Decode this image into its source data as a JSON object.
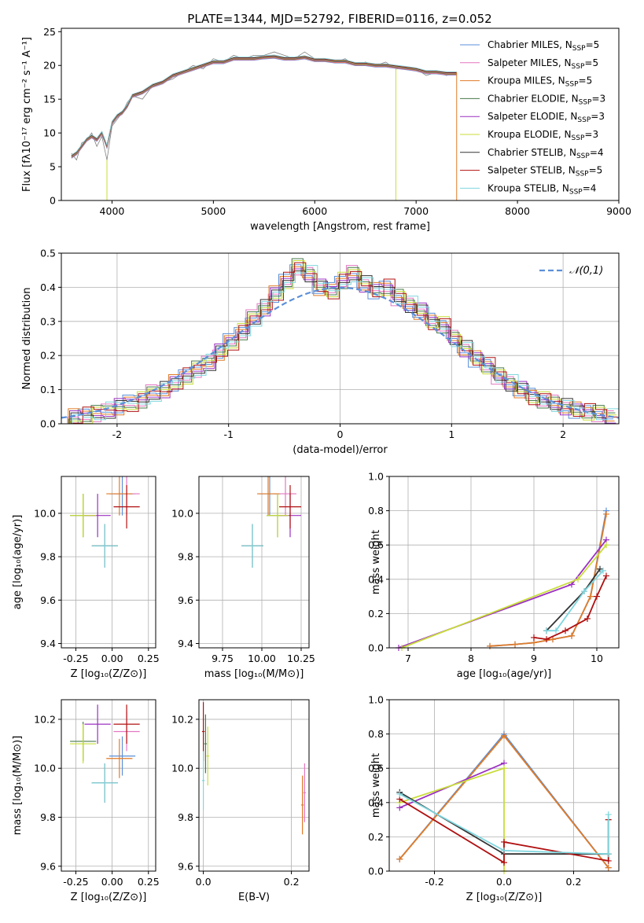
{
  "title": "PLATE=1344, MJD=52792, FIBERID=0116, z=0.052",
  "legend_spec": [
    {
      "name": "Chabrier MILES, N",
      "sub": "SSP",
      "eq": "=5",
      "color": "#5b8fd9"
    },
    {
      "name": "Salpeter MILES, N",
      "sub": "SSP",
      "eq": "=5",
      "color": "#e377c2"
    },
    {
      "name": "Kroupa MILES, N",
      "sub": "SSP",
      "eq": "=5",
      "color": "#e07b28"
    },
    {
      "name": "Chabrier ELODIE, N",
      "sub": "SSP",
      "eq": "=3",
      "color": "#4a7a4a"
    },
    {
      "name": "Salpeter ELODIE, N",
      "sub": "SSP",
      "eq": "=3",
      "color": "#9b30c0"
    },
    {
      "name": "Kroupa ELODIE, N",
      "sub": "SSP",
      "eq": "=3",
      "color": "#c8dd3a"
    },
    {
      "name": "Chabrier STELIB, N",
      "sub": "SSP",
      "eq": "=4",
      "color": "#333333"
    },
    {
      "name": "Salpeter STELIB, N",
      "sub": "SSP",
      "eq": "=5",
      "color": "#b01010"
    },
    {
      "name": "Kroupa STELIB, N",
      "sub": "SSP",
      "eq": "=4",
      "color": "#7fd6de"
    }
  ],
  "chart_data": [
    {
      "type": "line",
      "title": "PLATE=1344, MJD=52792, FIBERID=0116, z=0.052",
      "xlabel": "wavelength [Angstrom, rest frame]",
      "ylabel": "Flux [fλ10⁻¹⁷ erg cm⁻² s⁻¹ A⁻¹]",
      "xlim": [
        3500,
        9000
      ],
      "ylim": [
        0,
        25.5
      ],
      "xticks": [
        4000,
        5000,
        6000,
        7000,
        8000,
        9000
      ],
      "yticks": [
        0,
        5,
        10,
        15,
        20,
        25
      ],
      "data_spectrum": {
        "x": [
          3600,
          3650,
          3700,
          3750,
          3800,
          3850,
          3900,
          3950,
          4000,
          4050,
          4100,
          4150,
          4200,
          4300,
          4400,
          4500,
          4600,
          4700,
          4800,
          4900,
          5000,
          5100,
          5200,
          5300,
          5400,
          5500,
          5600,
          5700,
          5800,
          5900,
          6000,
          6100,
          6200,
          6300,
          6400,
          6500,
          6600,
          6700,
          6800,
          6900,
          7000,
          7100,
          7200,
          7300,
          7400
        ],
        "y": [
          7.0,
          6.0,
          8.5,
          9.0,
          10.0,
          8.0,
          9.5,
          6.0,
          11.0,
          12.0,
          13.0,
          14.5,
          15.5,
          15.0,
          17.0,
          17.5,
          18.0,
          19.0,
          20.0,
          19.5,
          21.0,
          20.5,
          21.5,
          21.0,
          21.5,
          21.5,
          22.0,
          21.5,
          21.0,
          22.0,
          21.0,
          21.0,
          20.5,
          21.0,
          20.0,
          20.5,
          20.0,
          20.5,
          19.5,
          19.5,
          19.5,
          18.5,
          19.0,
          18.5,
          19.0
        ]
      },
      "model_spectrum": {
        "x": [
          3600,
          3650,
          3700,
          3750,
          3800,
          3850,
          3900,
          3950,
          4000,
          4050,
          4100,
          4150,
          4200,
          4300,
          4400,
          4500,
          4600,
          4700,
          4800,
          4900,
          5000,
          5100,
          5200,
          5300,
          5400,
          5500,
          5600,
          5700,
          5800,
          5900,
          6000,
          6100,
          6200,
          6300,
          6400,
          6500,
          6600,
          6700,
          6800,
          6900,
          7000,
          7100,
          7200,
          7300,
          7400
        ],
        "y": [
          6.5,
          7.0,
          8.0,
          9.0,
          9.5,
          9.0,
          10.0,
          8.0,
          11.5,
          12.5,
          13.0,
          14.0,
          15.5,
          16.0,
          17.0,
          17.5,
          18.5,
          19.0,
          19.5,
          20.0,
          20.5,
          20.5,
          21.0,
          21.0,
          21.0,
          21.2,
          21.3,
          21.0,
          21.0,
          21.2,
          20.8,
          20.8,
          20.6,
          20.6,
          20.2,
          20.2,
          20.0,
          20.0,
          19.8,
          19.6,
          19.4,
          19.0,
          19.0,
          18.8,
          18.8
        ]
      }
    },
    {
      "type": "line",
      "xlabel": "(data-model)/error",
      "ylabel": "Normed distribution",
      "xlim": [
        -2.5,
        2.5
      ],
      "ylim": [
        0,
        0.5
      ],
      "xticks": [
        -2,
        -1,
        0,
        1,
        2
      ],
      "yticks": [
        0.0,
        0.1,
        0.2,
        0.3,
        0.4,
        0.5
      ],
      "legend": "𝒩(0,1)",
      "gaussian": {
        "mean": 0,
        "sigma": 1
      },
      "histogram_centers": [
        -2.4,
        -2.3,
        -2.2,
        -2.1,
        -2.0,
        -1.9,
        -1.8,
        -1.7,
        -1.6,
        -1.5,
        -1.4,
        -1.3,
        -1.2,
        -1.1,
        -1.0,
        -0.9,
        -0.8,
        -0.7,
        -0.6,
        -0.5,
        -0.4,
        -0.3,
        -0.2,
        -0.1,
        0.0,
        0.1,
        0.2,
        0.3,
        0.4,
        0.5,
        0.6,
        0.7,
        0.8,
        0.9,
        1.0,
        1.1,
        1.2,
        1.3,
        1.4,
        1.5,
        1.6,
        1.7,
        1.8,
        1.9,
        2.0,
        2.1,
        2.2,
        2.3,
        2.4
      ],
      "histogram_values": [
        0.02,
        0.025,
        0.03,
        0.04,
        0.05,
        0.06,
        0.07,
        0.09,
        0.1,
        0.12,
        0.14,
        0.16,
        0.18,
        0.21,
        0.24,
        0.27,
        0.31,
        0.34,
        0.38,
        0.42,
        0.46,
        0.44,
        0.4,
        0.39,
        0.42,
        0.44,
        0.41,
        0.39,
        0.4,
        0.37,
        0.35,
        0.33,
        0.3,
        0.29,
        0.25,
        0.22,
        0.19,
        0.17,
        0.14,
        0.12,
        0.1,
        0.08,
        0.07,
        0.06,
        0.05,
        0.04,
        0.035,
        0.03,
        0.02
      ]
    },
    {
      "type": "scatter",
      "xlabel": "Z [log₁₀(Z/Z⊙)]",
      "ylabel": "age  [log₁₀(age/yr)]",
      "xlim": [
        -0.35,
        0.3
      ],
      "ylim": [
        9.38,
        10.17
      ],
      "xticks": [
        -0.25,
        0.0,
        0.25
      ],
      "yticks": [
        9.4,
        9.6,
        9.8,
        10.0
      ],
      "points": [
        {
          "x": 0.07,
          "y": 10.09,
          "color": "#5b8fd9"
        },
        {
          "x": 0.1,
          "y": 10.09,
          "color": "#e377c2"
        },
        {
          "x": 0.05,
          "y": 10.09,
          "color": "#e07b28"
        },
        {
          "x": -0.2,
          "y": 9.99,
          "color": "#4a7a4a"
        },
        {
          "x": -0.1,
          "y": 9.99,
          "color": "#9b30c0"
        },
        {
          "x": -0.2,
          "y": 9.99,
          "color": "#c8dd3a"
        },
        {
          "x": -0.05,
          "y": 9.85,
          "color": "#333333"
        },
        {
          "x": 0.1,
          "y": 10.03,
          "color": "#b01010"
        },
        {
          "x": -0.05,
          "y": 9.85,
          "color": "#7fd6de"
        }
      ]
    },
    {
      "type": "scatter",
      "xlabel": "mass [log₁₀(M/M⊙)]",
      "xlim": [
        9.6,
        10.3
      ],
      "ylim": [
        9.38,
        10.17
      ],
      "xticks": [
        9.75,
        10.0,
        10.25
      ],
      "yticks": [
        9.4,
        9.6,
        9.8,
        10.0
      ],
      "points": [
        {
          "x": 10.05,
          "y": 10.09,
          "color": "#5b8fd9"
        },
        {
          "x": 10.15,
          "y": 10.09,
          "color": "#e377c2"
        },
        {
          "x": 10.04,
          "y": 10.09,
          "color": "#e07b28"
        },
        {
          "x": 10.1,
          "y": 9.99,
          "color": "#4a7a4a"
        },
        {
          "x": 10.18,
          "y": 9.99,
          "color": "#9b30c0"
        },
        {
          "x": 10.1,
          "y": 9.99,
          "color": "#c8dd3a"
        },
        {
          "x": 9.94,
          "y": 9.85,
          "color": "#333333"
        },
        {
          "x": 10.18,
          "y": 10.03,
          "color": "#b01010"
        },
        {
          "x": 9.94,
          "y": 9.85,
          "color": "#7fd6de"
        }
      ]
    },
    {
      "type": "line",
      "xlabel": "age  [log₁₀(age/yr)]",
      "ylabel": "mass weight",
      "xlim": [
        6.7,
        10.35
      ],
      "ylim": [
        0.0,
        1.0
      ],
      "xticks": [
        7,
        8,
        9,
        10
      ],
      "yticks": [
        0.0,
        0.2,
        0.4,
        0.6,
        0.8,
        1.0
      ],
      "series": [
        {
          "color": "#5b8fd9",
          "x": [
            8.3,
            8.7,
            9.0,
            9.3,
            9.6,
            9.9,
            10.15
          ],
          "y": [
            0.01,
            0.02,
            0.03,
            0.05,
            0.07,
            0.3,
            0.8
          ]
        },
        {
          "color": "#e07b28",
          "x": [
            8.3,
            8.7,
            9.0,
            9.3,
            9.6,
            9.9,
            10.15
          ],
          "y": [
            0.01,
            0.02,
            0.03,
            0.05,
            0.07,
            0.3,
            0.78
          ]
        },
        {
          "color": "#9b30c0",
          "x": [
            6.85,
            9.6,
            10.15
          ],
          "y": [
            0.0,
            0.37,
            0.63
          ]
        },
        {
          "color": "#c8dd3a",
          "x": [
            6.9,
            9.7,
            10.15
          ],
          "y": [
            0.0,
            0.4,
            0.6
          ]
        },
        {
          "color": "#333333",
          "x": [
            9.2,
            9.8,
            10.05
          ],
          "y": [
            0.1,
            0.33,
            0.46
          ]
        },
        {
          "color": "#b01010",
          "x": [
            9.0,
            9.2,
            9.5,
            9.85,
            10.0,
            10.15
          ],
          "y": [
            0.06,
            0.05,
            0.1,
            0.17,
            0.3,
            0.42
          ]
        },
        {
          "color": "#7fd6de",
          "x": [
            9.2,
            9.35,
            9.8,
            10.1
          ],
          "y": [
            0.1,
            0.1,
            0.33,
            0.45
          ]
        }
      ]
    },
    {
      "type": "scatter",
      "xlabel": "Z [log₁₀(Z/Z⊙)]",
      "ylabel": "mass [log₁₀(M/M⊙)]",
      "xlim": [
        -0.35,
        0.3
      ],
      "ylim": [
        9.58,
        10.28
      ],
      "xticks": [
        -0.25,
        0.0,
        0.25
      ],
      "yticks": [
        9.6,
        9.8,
        10.0,
        10.2
      ],
      "points": [
        {
          "x": 0.07,
          "y": 10.05,
          "color": "#5b8fd9"
        },
        {
          "x": 0.1,
          "y": 10.15,
          "color": "#e377c2"
        },
        {
          "x": 0.05,
          "y": 10.04,
          "color": "#e07b28"
        },
        {
          "x": -0.2,
          "y": 10.11,
          "color": "#4a7a4a"
        },
        {
          "x": -0.1,
          "y": 10.18,
          "color": "#9b30c0"
        },
        {
          "x": -0.2,
          "y": 10.1,
          "color": "#c8dd3a"
        },
        {
          "x": -0.05,
          "y": 9.94,
          "color": "#333333"
        },
        {
          "x": 0.1,
          "y": 10.18,
          "color": "#b01010"
        },
        {
          "x": -0.05,
          "y": 9.94,
          "color": "#7fd6de"
        }
      ]
    },
    {
      "type": "scatter",
      "xlabel": "E(B-V)",
      "xlim": [
        -0.01,
        0.24
      ],
      "ylim": [
        9.58,
        10.28
      ],
      "xticks": [
        0.0,
        0.2
      ],
      "yticks": [
        9.6,
        9.8,
        10.0,
        10.2
      ],
      "points": [
        {
          "x": 0.005,
          "y": 10.1,
          "color": "#4a7a4a"
        },
        {
          "x": 0.01,
          "y": 10.05,
          "color": "#c8dd3a"
        },
        {
          "x": 0.0,
          "y": 10.15,
          "color": "#b01010"
        },
        {
          "x": 0.0,
          "y": 9.95,
          "color": "#7fd6de"
        },
        {
          "x": 0.23,
          "y": 9.9,
          "color": "#e377c2"
        },
        {
          "x": 0.225,
          "y": 9.85,
          "color": "#e07b28"
        }
      ]
    },
    {
      "type": "line",
      "xlabel": "Z [log₁₀(Z/Z⊙)]",
      "ylabel": "mass weight",
      "xlim": [
        -0.33,
        0.33
      ],
      "ylim": [
        0.0,
        1.0
      ],
      "xticks": [
        -0.2,
        0.0,
        0.2
      ],
      "yticks": [
        0.0,
        0.2,
        0.4,
        0.6,
        0.8,
        1.0
      ],
      "series": [
        {
          "color": "#5b8fd9",
          "x": [
            -0.3,
            0.0,
            0.3
          ],
          "y": [
            0.07,
            0.8,
            0.02
          ]
        },
        {
          "color": "#e07b28",
          "x": [
            -0.3,
            0.0,
            0.3
          ],
          "y": [
            0.07,
            0.79,
            0.02
          ]
        },
        {
          "color": "#9b30c0",
          "x": [
            -0.3,
            0.0
          ],
          "y": [
            0.37,
            0.63
          ]
        },
        {
          "color": "#c8dd3a",
          "x": [
            -0.3,
            0.0,
            0.0
          ],
          "y": [
            0.4,
            0.6,
            0.0
          ]
        },
        {
          "color": "#333333",
          "x": [
            -0.3,
            0.0,
            0.3
          ],
          "y": [
            0.46,
            0.1,
            0.1
          ]
        },
        {
          "color": "#b01010",
          "x": [
            -0.3,
            0.0,
            0.0,
            0.3,
            0.3
          ],
          "y": [
            0.42,
            0.05,
            0.17,
            0.06,
            0.3
          ]
        },
        {
          "color": "#7fd6de",
          "x": [
            -0.3,
            0.0,
            0.3,
            0.3
          ],
          "y": [
            0.45,
            0.12,
            0.1,
            0.33
          ]
        }
      ]
    }
  ]
}
